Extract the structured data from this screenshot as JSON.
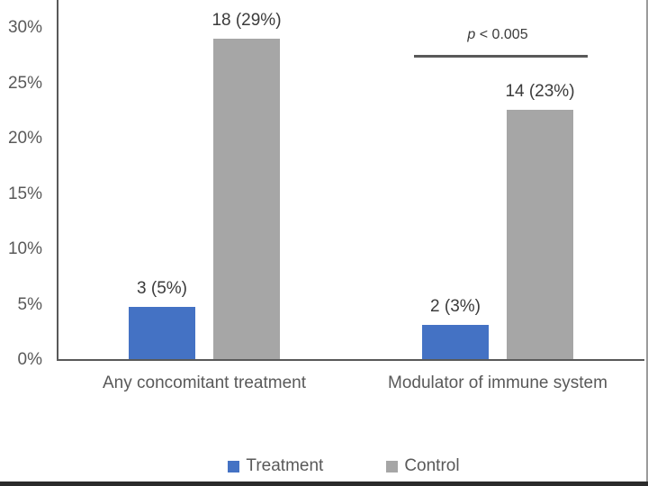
{
  "chart_data": {
    "type": "bar",
    "title": "",
    "categories": [
      "Any concomitant treatment",
      "Modulator of immune system"
    ],
    "series": [
      {
        "name": "Treatment",
        "color": "#4472C4",
        "counts": [
          3,
          2
        ],
        "percent_labels": [
          "3 (5%)",
          "2 (3%)"
        ],
        "bar_heights_pct": [
          4.8,
          3.2
        ]
      },
      {
        "name": "Control",
        "color": "#A6A6A6",
        "counts": [
          18,
          14
        ],
        "percent_labels": [
          "18 (29%)",
          "14 (23%)"
        ],
        "bar_heights_pct": [
          29.0,
          22.6
        ]
      }
    ],
    "y_axis": {
      "tick_values_pct": [
        0,
        5,
        10,
        15,
        20,
        25,
        30
      ],
      "tick_labels": [
        "0%",
        "5%",
        "10%",
        "15%",
        "20%",
        "25%",
        "30%"
      ],
      "ylim": [
        0,
        32.5
      ],
      "grid": false
    },
    "xlabel": "",
    "ylabel": "",
    "annotation": {
      "italic_part": "p",
      "text_part": " < 0.005",
      "target_category_index": 1
    },
    "legend": [
      {
        "label": "Treatment",
        "color": "#4472C4"
      },
      {
        "label": "Control",
        "color": "#A6A6A6"
      }
    ],
    "legend_position": "bottom"
  },
  "colors": {
    "axis": "#595959",
    "gray_text": "#595959",
    "dark_text": "#3b3b3b",
    "treatment_blue": "#4472C4",
    "control_gray": "#A6A6A6",
    "frame_bottom": "#2b2b2b",
    "frame_right": "#9b9b9b"
  }
}
